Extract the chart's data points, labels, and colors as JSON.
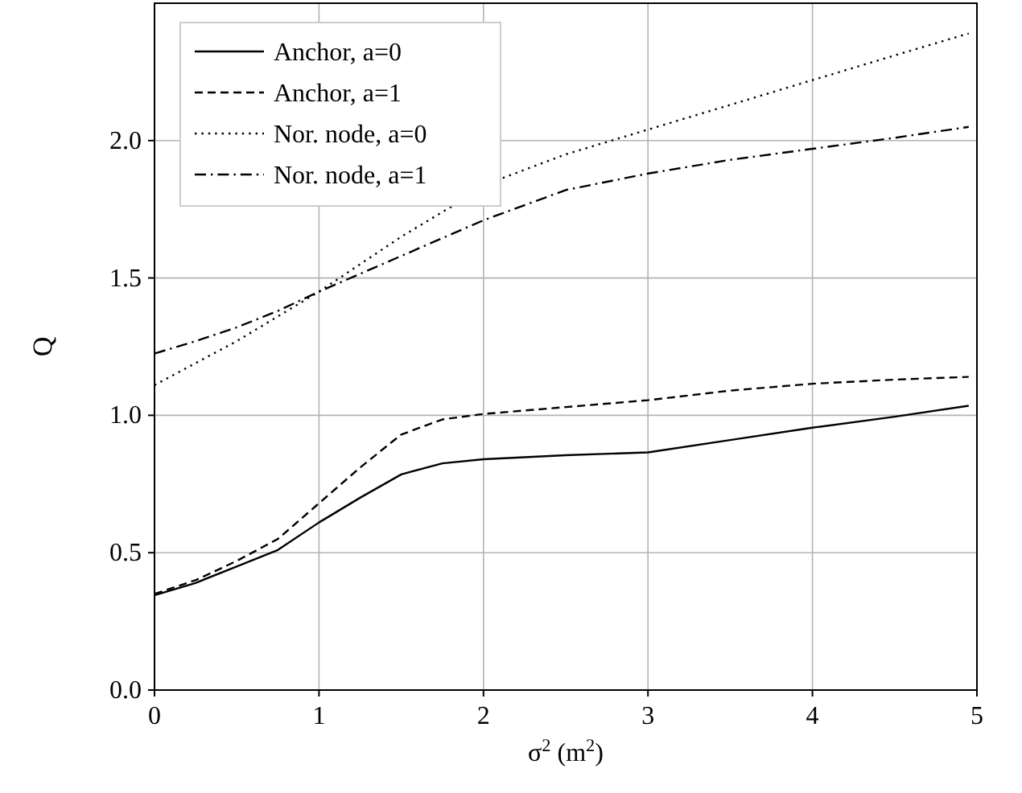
{
  "chart_data": {
    "type": "line",
    "xlabel": "σ$^{2}$ (m$^{2}$)",
    "ylabel": "Q",
    "xlim": [
      0,
      5
    ],
    "xticks": [
      0,
      1,
      2,
      3,
      4,
      5
    ],
    "ylim": [
      0,
      2.5
    ],
    "yticks": [
      {
        "value": 0,
        "label": "0.0"
      },
      0.5,
      {
        "value": 1,
        "label": "1.0"
      },
      1.5,
      {
        "value": 2,
        "label": "2.0"
      }
    ],
    "grid": true,
    "legend": "top left",
    "x": [
      0,
      0.25,
      0.5,
      0.75,
      1,
      1.25,
      1.5,
      1.75,
      2,
      2.5,
      3,
      3.5,
      4,
      4.5,
      4.95
    ],
    "series": [
      {
        "name": "Anchor, a=0",
        "color": "#000000",
        "line_style": "solid",
        "values": [
          0.345,
          0.39,
          0.45,
          0.51,
          0.61,
          0.7,
          0.785,
          0.825,
          0.84,
          0.855,
          0.865,
          0.91,
          0.955,
          0.995,
          1.035
        ]
      },
      {
        "name": "Anchor, a=1",
        "color": "#000000",
        "line_style": "dashed",
        "values": [
          0.35,
          0.4,
          0.47,
          0.55,
          0.68,
          0.81,
          0.93,
          0.985,
          1.005,
          1.03,
          1.055,
          1.09,
          1.115,
          1.13,
          1.14
        ]
      },
      {
        "name": "Nor. node, a=0",
        "color": "#000000",
        "line_style": "dotted",
        "x": [
          0,
          0.25,
          0.5,
          0.75,
          1,
          1.25,
          1.5,
          1.75,
          2.1,
          2.5,
          3,
          3.5,
          4,
          4.5,
          4.95
        ],
        "values": [
          1.11,
          1.19,
          1.27,
          1.36,
          1.45,
          1.55,
          1.65,
          1.74,
          1.86,
          1.95,
          2.04,
          2.13,
          2.22,
          2.31,
          2.39
        ]
      },
      {
        "name": "Nor. node, a=1",
        "color": "#000000",
        "line_style": "dashdot",
        "values": [
          1.225,
          1.27,
          1.32,
          1.38,
          1.45,
          1.515,
          1.58,
          1.645,
          1.71,
          1.82,
          1.88,
          1.93,
          1.97,
          2.01,
          2.05
        ]
      }
    ]
  }
}
